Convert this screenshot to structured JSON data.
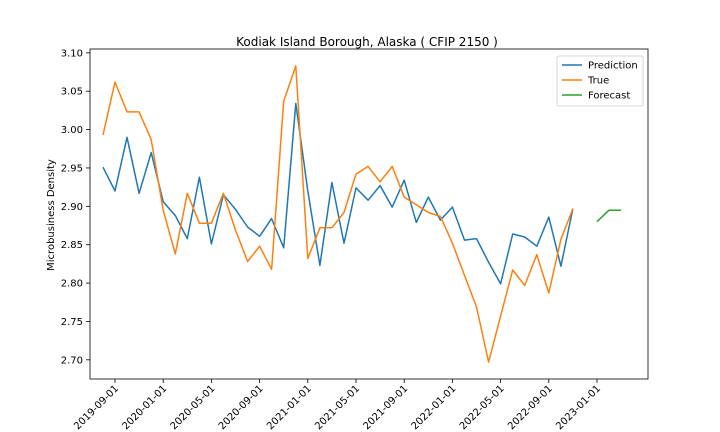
{
  "chart_data": {
    "type": "line",
    "title": "Kodiak Island Borough, Alaska ( CFIP 2150 )",
    "xlabel": "",
    "ylabel": "Microbusiness Density",
    "ylim": [
      2.675,
      3.105
    ],
    "y_ticks": [
      "2.70",
      "2.75",
      "2.80",
      "2.85",
      "2.90",
      "2.95",
      "3.00",
      "3.05",
      "3.10"
    ],
    "x_ticks": [
      "2019-09-01",
      "2020-01-01",
      "2020-05-01",
      "2020-09-01",
      "2021-01-01",
      "2021-05-01",
      "2021-09-01",
      "2022-01-01",
      "2022-05-01",
      "2022-09-01",
      "2023-01-01"
    ],
    "legend_position": "top-right",
    "grid": false,
    "series": [
      {
        "name": "Prediction",
        "color": "#1f77b4",
        "x": [
          "2019-08",
          "2019-09",
          "2019-10",
          "2019-11",
          "2019-12",
          "2020-01",
          "2020-02",
          "2020-03",
          "2020-04",
          "2020-05",
          "2020-06",
          "2020-07",
          "2020-08",
          "2020-09",
          "2020-10",
          "2020-11",
          "2020-12",
          "2021-01",
          "2021-02",
          "2021-03",
          "2021-04",
          "2021-05",
          "2021-06",
          "2021-07",
          "2021-08",
          "2021-09",
          "2021-10",
          "2021-11",
          "2021-12",
          "2022-01",
          "2022-02",
          "2022-03",
          "2022-04",
          "2022-05",
          "2022-06",
          "2022-07",
          "2022-08",
          "2022-09",
          "2022-10",
          "2022-11"
        ],
        "values": [
          2.951,
          2.92,
          2.99,
          2.917,
          2.97,
          2.906,
          2.888,
          2.858,
          2.938,
          2.851,
          2.915,
          2.896,
          2.873,
          2.861,
          2.884,
          2.846,
          3.034,
          2.92,
          2.823,
          2.931,
          2.852,
          2.924,
          2.908,
          2.927,
          2.899,
          2.934,
          2.879,
          2.912,
          2.882,
          2.899,
          2.856,
          2.858,
          2.827,
          2.799,
          2.864,
          2.86,
          2.848,
          2.886,
          2.822,
          2.897
        ]
      },
      {
        "name": "True",
        "color": "#ff7f0e",
        "x": [
          "2019-08",
          "2019-09",
          "2019-10",
          "2019-11",
          "2019-12",
          "2020-01",
          "2020-02",
          "2020-03",
          "2020-04",
          "2020-05",
          "2020-06",
          "2020-07",
          "2020-08",
          "2020-09",
          "2020-10",
          "2020-11",
          "2020-12",
          "2021-01",
          "2021-02",
          "2021-03",
          "2021-04",
          "2021-05",
          "2021-06",
          "2021-07",
          "2021-08",
          "2021-09",
          "2021-10",
          "2021-11",
          "2021-12",
          "2022-01",
          "2022-02",
          "2022-03",
          "2022-04",
          "2022-05",
          "2022-06",
          "2022-07",
          "2022-08",
          "2022-09",
          "2022-10",
          "2022-11"
        ],
        "values": [
          2.993,
          3.062,
          3.023,
          3.023,
          2.987,
          2.895,
          2.838,
          2.917,
          2.878,
          2.878,
          2.917,
          2.869,
          2.828,
          2.848,
          2.818,
          3.037,
          3.083,
          2.832,
          2.872,
          2.872,
          2.892,
          2.942,
          2.952,
          2.932,
          2.952,
          2.912,
          2.902,
          2.892,
          2.887,
          2.852,
          2.81,
          2.769,
          2.697,
          2.757,
          2.817,
          2.797,
          2.837,
          2.787,
          2.857,
          2.897
        ]
      },
      {
        "name": "Forecast",
        "color": "#2ca02c",
        "x": [
          "2023-01",
          "2023-02",
          "2023-03"
        ],
        "values": [
          2.88,
          2.895,
          2.895
        ]
      }
    ]
  }
}
